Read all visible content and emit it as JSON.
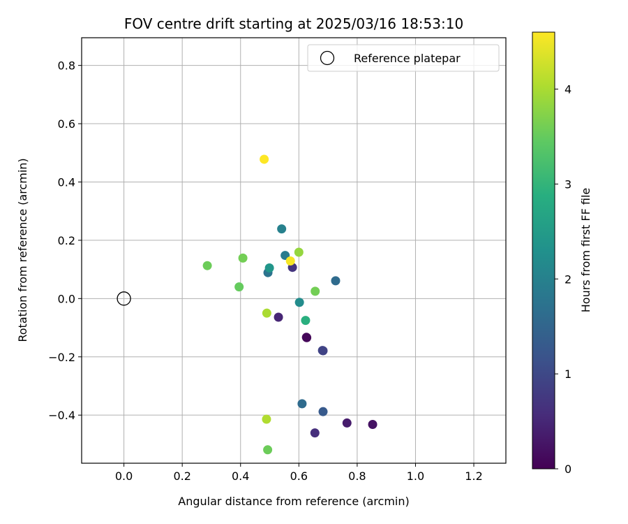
{
  "chart_data": {
    "type": "scatter",
    "title": "FOV centre drift starting at 2025/03/16 18:53:10",
    "xlabel": "Angular distance from reference (arcmin)",
    "ylabel": "Rotation from reference (arcmin)",
    "xlim": [
      -0.145,
      1.31
    ],
    "ylim": [
      -0.565,
      0.895
    ],
    "xticks": [
      0.0,
      0.2,
      0.4,
      0.6,
      0.8,
      1.0,
      1.2
    ],
    "xtick_labels": [
      "0.0",
      "0.2",
      "0.4",
      "0.6",
      "0.8",
      "1.0",
      "1.2"
    ],
    "yticks": [
      -0.4,
      -0.2,
      0.0,
      0.2,
      0.4,
      0.6,
      0.8
    ],
    "ytick_labels": [
      "−0.4",
      "−0.2",
      "0.0",
      "0.2",
      "0.4",
      "0.6",
      "0.8"
    ],
    "grid": true,
    "legend": {
      "position": "top-right",
      "entries": [
        "Reference platepar"
      ]
    },
    "reference_point": {
      "name": "Reference platepar",
      "x": 0.0,
      "y": 0.0
    },
    "colorbar": {
      "label": "Hours from first FF file",
      "range": [
        0,
        4.6
      ],
      "ticks": [
        0,
        1,
        2,
        3,
        4
      ],
      "tick_labels": [
        "0",
        "1",
        "2",
        "3",
        "4"
      ],
      "colormap": "viridis"
    },
    "points": [
      {
        "x": 0.627,
        "y": -0.134,
        "hours": 0.02
      },
      {
        "x": 0.626,
        "y": -0.133,
        "hours": 0.08
      },
      {
        "x": 0.853,
        "y": -0.432,
        "hours": 0.22
      },
      {
        "x": 0.765,
        "y": -0.427,
        "hours": 0.35
      },
      {
        "x": 0.53,
        "y": -0.064,
        "hours": 0.48
      },
      {
        "x": 0.655,
        "y": -0.461,
        "hours": 0.6
      },
      {
        "x": 0.578,
        "y": 0.107,
        "hours": 0.7
      },
      {
        "x": 0.683,
        "y": -0.179,
        "hours": 0.85
      },
      {
        "x": 0.681,
        "y": -0.178,
        "hours": 0.92
      },
      {
        "x": 0.683,
        "y": -0.388,
        "hours": 1.3
      },
      {
        "x": 0.611,
        "y": -0.361,
        "hours": 1.6
      },
      {
        "x": 0.494,
        "y": 0.089,
        "hours": 1.75
      },
      {
        "x": 0.726,
        "y": 0.061,
        "hours": 1.6
      },
      {
        "x": 0.553,
        "y": 0.148,
        "hours": 1.9
      },
      {
        "x": 0.541,
        "y": 0.239,
        "hours": 2.0
      },
      {
        "x": 0.602,
        "y": -0.013,
        "hours": 2.2
      },
      {
        "x": 0.499,
        "y": 0.105,
        "hours": 2.4
      },
      {
        "x": 0.623,
        "y": -0.075,
        "hours": 2.9
      },
      {
        "x": 0.395,
        "y": 0.04,
        "hours": 3.5
      },
      {
        "x": 0.286,
        "y": 0.113,
        "hours": 3.55
      },
      {
        "x": 0.493,
        "y": -0.519,
        "hours": 3.55
      },
      {
        "x": 0.408,
        "y": 0.139,
        "hours": 3.6
      },
      {
        "x": 0.656,
        "y": 0.025,
        "hours": 3.6
      },
      {
        "x": 0.6,
        "y": 0.159,
        "hours": 3.85
      },
      {
        "x": 0.49,
        "y": -0.05,
        "hours": 4.0
      },
      {
        "x": 0.489,
        "y": -0.414,
        "hours": 4.05
      },
      {
        "x": 0.571,
        "y": 0.129,
        "hours": 4.55
      },
      {
        "x": 0.481,
        "y": 0.478,
        "hours": 4.6
      }
    ]
  }
}
